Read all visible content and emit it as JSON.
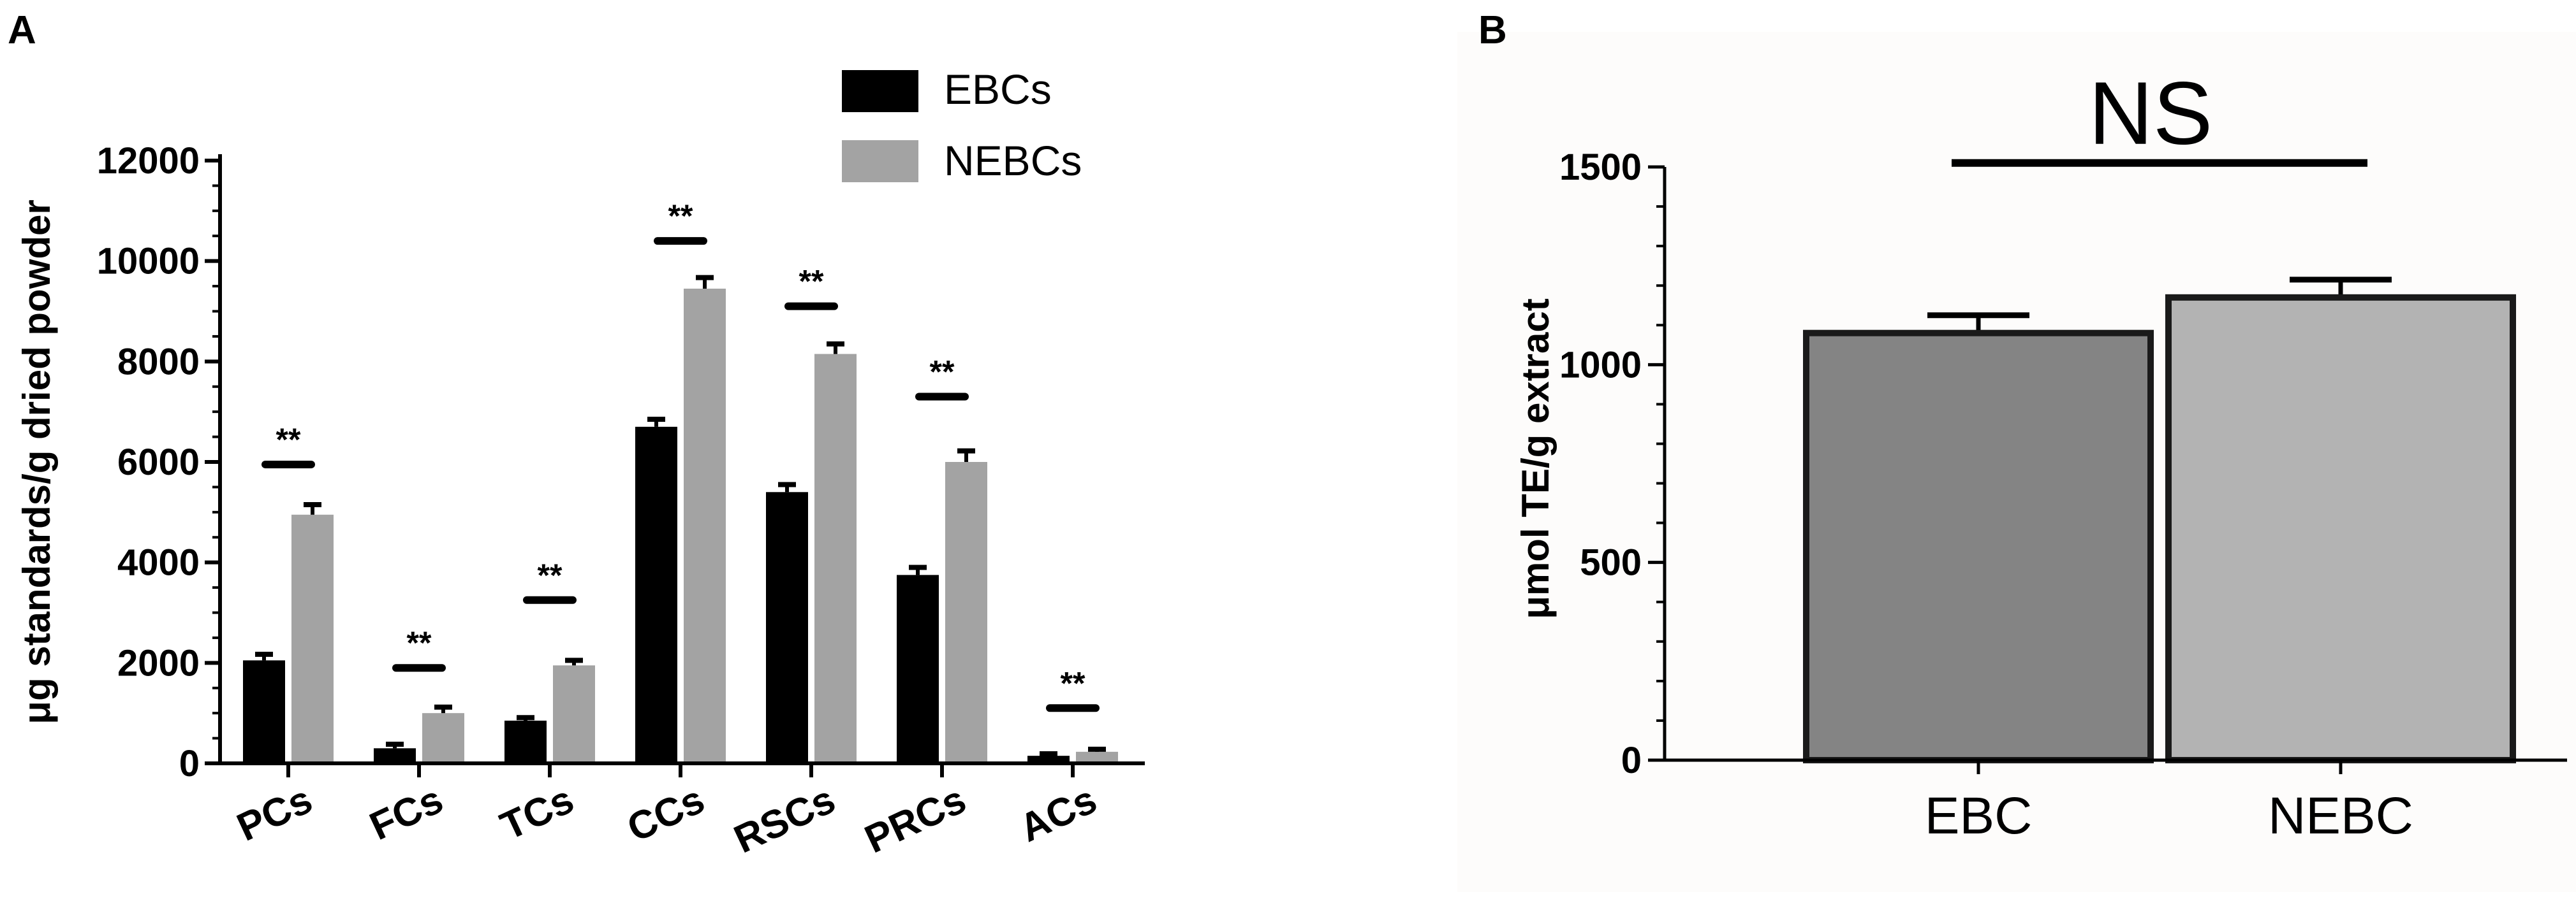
{
  "panels": {
    "a_label": "A",
    "b_label": "B"
  },
  "colors": {
    "ebc_series": "#000000",
    "nebc_series": "#a3a3a3",
    "ebc_bar_b": "#848484",
    "nebc_bar_b": "#b3b3b3",
    "axis": "#000000",
    "panel_b_bg": "#fdfcfb"
  },
  "chart_data": [
    {
      "panel": "A",
      "type": "bar",
      "title": "",
      "xlabel": "",
      "ylabel": "μg standards/g dried powder",
      "ylim": [
        0,
        12000
      ],
      "yticks": [
        0,
        2000,
        4000,
        6000,
        8000,
        10000,
        12000
      ],
      "ytick_labels": [
        "0",
        "2000",
        "4000",
        "6000",
        "8000",
        "10000",
        "12000"
      ],
      "legend_position": "top-right",
      "grid": false,
      "categories": [
        "PCs",
        "FCs",
        "TCs",
        "CCs",
        "RSCs",
        "PRCs",
        "ACs"
      ],
      "series": [
        {
          "name": "EBCs",
          "values": [
            2050,
            300,
            850,
            6700,
            5400,
            3750,
            150
          ],
          "errors": [
            120,
            80,
            60,
            150,
            150,
            150,
            40
          ]
        },
        {
          "name": "NEBCs",
          "values": [
            4950,
            1000,
            1950,
            9450,
            8150,
            6000,
            230
          ],
          "errors": [
            200,
            120,
            100,
            220,
            200,
            220,
            50
          ]
        }
      ],
      "significance": [
        {
          "category": "PCs",
          "label": "**",
          "y": 5950
        },
        {
          "category": "FCs",
          "label": "**",
          "y": 1900
        },
        {
          "category": "TCs",
          "label": "**",
          "y": 3250
        },
        {
          "category": "CCs",
          "label": "**",
          "y": 10400
        },
        {
          "category": "RSCs",
          "label": "**",
          "y": 9100
        },
        {
          "category": "PRCs",
          "label": "**",
          "y": 7300
        },
        {
          "category": "ACs",
          "label": "**",
          "y": 1100
        }
      ]
    },
    {
      "panel": "B",
      "type": "bar",
      "title": "",
      "xlabel": "",
      "ylabel": "μmol TE/g extract",
      "ylim": [
        0,
        1500
      ],
      "yticks": [
        0,
        500,
        1000,
        1500
      ],
      "ytick_labels": [
        "0",
        "500",
        "1000",
        "1500"
      ],
      "grid": false,
      "categories": [
        "EBC",
        "NEBC"
      ],
      "values": [
        1080,
        1170
      ],
      "errors": [
        45,
        45
      ],
      "significance": {
        "label": "NS",
        "y": 1510
      }
    }
  ]
}
